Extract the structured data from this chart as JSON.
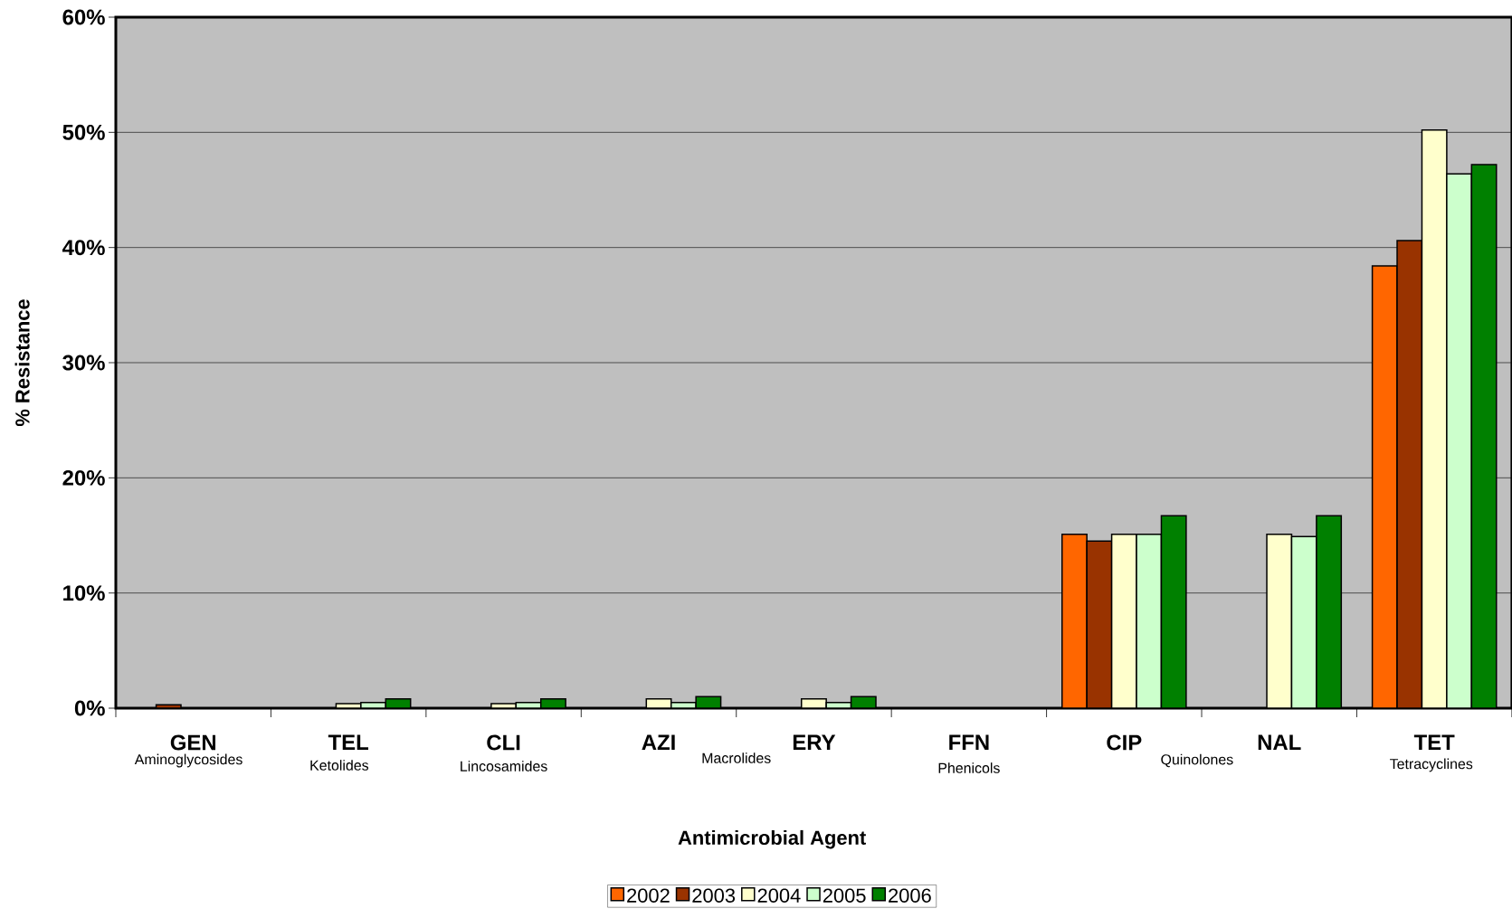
{
  "chart_data": {
    "type": "bar",
    "xlabel": "Antimicrobial Agent",
    "ylabel": "% Resistance",
    "categories": [
      "GEN",
      "TEL",
      "CLI",
      "AZI",
      "ERY",
      "FFN",
      "CIP",
      "NAL",
      "TET"
    ],
    "series": [
      {
        "name": "2002",
        "color": "#ff6600",
        "values": [
          null,
          null,
          null,
          null,
          null,
          null,
          15.1,
          null,
          38.4
        ]
      },
      {
        "name": "2003",
        "color": "#993300",
        "values": [
          0.3,
          null,
          null,
          null,
          null,
          null,
          14.5,
          null,
          40.6
        ]
      },
      {
        "name": "2004",
        "color": "#ffffcc",
        "values": [
          null,
          0.4,
          0.4,
          0.8,
          0.8,
          null,
          15.1,
          15.1,
          50.2
        ]
      },
      {
        "name": "2005",
        "color": "#ccffcc",
        "values": [
          null,
          0.5,
          0.5,
          0.5,
          0.5,
          null,
          15.1,
          14.9,
          46.4
        ]
      },
      {
        "name": "2006",
        "color": "#008000",
        "values": [
          null,
          0.8,
          0.8,
          1.0,
          1.0,
          null,
          16.7,
          16.7,
          47.2
        ]
      }
    ],
    "annotations": [
      "Aminoglycosides",
      "Ketolides",
      "Lincosamides",
      "Macrolides",
      "Phenicols",
      "Quinolones",
      "Tetracyclines"
    ],
    "ylim": [
      0,
      60
    ],
    "yticks": [
      {
        "value": 0,
        "label": "0%"
      },
      {
        "value": 10,
        "label": "10%"
      },
      {
        "value": 20,
        "label": "20%"
      },
      {
        "value": 30,
        "label": "30%"
      },
      {
        "value": 40,
        "label": "40%"
      },
      {
        "value": 50,
        "label": "50%"
      },
      {
        "value": 60,
        "label": "60%"
      }
    ],
    "grid": "y",
    "legend": "bottom"
  }
}
